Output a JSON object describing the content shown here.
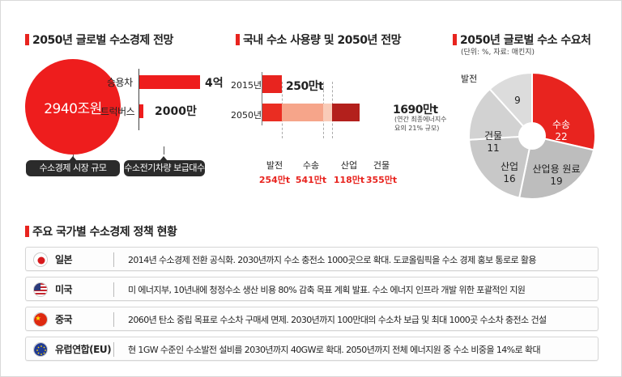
{
  "section1": {
    "title": "2050년 글로벌 수소경제 전망",
    "market_size": "2940조원",
    "market_label": "수소경제 시장 규모",
    "rows": [
      {
        "label": "승용차",
        "value": "4억"
      },
      {
        "label": "트럭버스",
        "value": "2000만"
      }
    ],
    "vehicles_label": "수소전기차량 보급대수"
  },
  "section2": {
    "title": "국내 수소 사용량 및 2050년 전망",
    "year_2015": "2015년",
    "year_2050": "2050년",
    "value_2015": "250만t",
    "value_2050": "1690만t",
    "note_2050": "(연간 최종에너지수요의 21% 규모)",
    "categories": [
      {
        "name": "발전",
        "value": "254만t"
      },
      {
        "name": "수송",
        "value": "541만t"
      },
      {
        "name": "산업",
        "value": "118만t"
      },
      {
        "name": "건물",
        "value": "355만t"
      }
    ]
  },
  "section3": {
    "title": "2050년 글로벌 수소 수요처",
    "unit_note": "(단위: %, 자료: 매킨지)",
    "outer_label_power": "발전"
  },
  "chart_data": [
    {
      "type": "bar",
      "title": "2050년 글로벌 수소경제 전망",
      "categories": [
        "승용차",
        "트럭버스"
      ],
      "values": [
        400000000,
        20000000
      ],
      "xlabel": "수소전기차량 보급대수"
    },
    {
      "type": "bar",
      "title": "국내 수소 사용량 및 2050년 전망",
      "categories": [
        "2015년",
        "2050년"
      ],
      "values": [
        250,
        1690
      ],
      "unit": "만t",
      "breakdown_2050": {
        "categories": [
          "발전",
          "수송",
          "산업",
          "건물"
        ],
        "values": [
          254,
          541,
          118,
          355
        ]
      }
    },
    {
      "type": "pie",
      "title": "2050년 글로벌 수소 수요처",
      "categories": [
        "수송",
        "산업용 원료",
        "산업",
        "건물",
        "발전"
      ],
      "values": [
        22,
        19,
        16,
        11,
        9
      ],
      "colors": [
        "#e8241f",
        "#bdbdbd",
        "#c8c8c8",
        "#d2d2d2",
        "#dcdcdc"
      ]
    }
  ],
  "policy": {
    "title": "주요 국가별 수소경제 정책 현황",
    "rows": [
      {
        "country": "일본",
        "text": "2014년 수소경제 전환 공식화. 2030년까지 수소 충전소 1000곳으로 확대. 도쿄올림픽을 수소 경제 홍보 통로로 활용"
      },
      {
        "country": "미국",
        "text": "미 에너지부, 10년내에 청정수소 생산 비용 80% 감축 목표 계획 발표. 수소 에너지 인프라 개발 위한 포괄적인 지원"
      },
      {
        "country": "중국",
        "text": "2060년 탄소 중립 목표로 수소차 구매세 면제. 2030년까지 100만대의 수소차 보급 및 최대 1000곳 수소차 충전소 건설"
      },
      {
        "country": "유럽연합(EU)",
        "text": "현 1GW 수준인 수소발전 설비를 2030년까지 40GW로 확대. 2050년까지 전체 에너지원 중 수소 비중을 14%로 확대"
      }
    ]
  },
  "colors": {
    "accent": "#e8241f",
    "dark": "#2b2b2b"
  }
}
